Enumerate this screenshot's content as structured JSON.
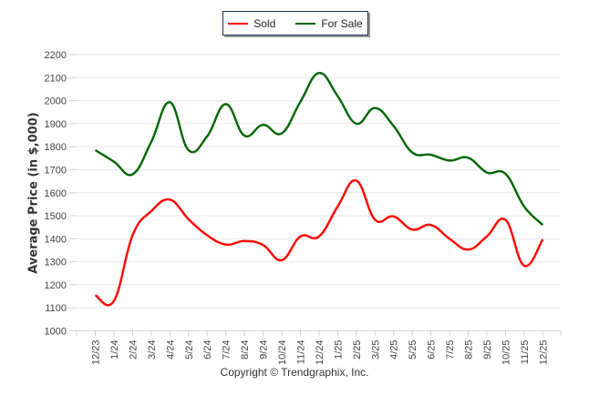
{
  "chart_data": {
    "type": "line",
    "title": "",
    "xlabel": "",
    "ylabel": "Average Price (in $,000)",
    "ylim": [
      1000,
      2200
    ],
    "yticks": [
      "1000",
      "1100",
      "1200",
      "1300",
      "1400",
      "1500",
      "1600",
      "1700",
      "1800",
      "1900",
      "2000",
      "2100",
      "2200"
    ],
    "grid": true,
    "legend_position": "top-center",
    "categories": [
      "12/23",
      "1/24",
      "2/24",
      "3/24",
      "4/24",
      "5/24",
      "6/24",
      "7/24",
      "8/24",
      "9/24",
      "10/24",
      "11/24",
      "12/24",
      "1/25",
      "2/25",
      "3/25",
      "4/25",
      "5/25",
      "6/25",
      "7/25",
      "8/25",
      "9/25",
      "10/25",
      "11/25",
      "12/25"
    ],
    "series": [
      {
        "name": "Sold",
        "color": "#ff0000",
        "values": [
          1155,
          1130,
          1415,
          1520,
          1570,
          1485,
          1415,
          1375,
          1390,
          1373,
          1307,
          1410,
          1410,
          1540,
          1653,
          1483,
          1497,
          1440,
          1460,
          1400,
          1353,
          1410,
          1482,
          1283,
          1397
        ]
      },
      {
        "name": "For Sale",
        "color": "#006400",
        "values": [
          1785,
          1735,
          1680,
          1820,
          1993,
          1785,
          1845,
          1985,
          1848,
          1895,
          1858,
          1995,
          2120,
          2020,
          1900,
          1968,
          1890,
          1775,
          1765,
          1740,
          1752,
          1688,
          1682,
          1540,
          1460
        ]
      }
    ]
  },
  "footer": {
    "copyright": "Copyright © Trendgraphix, Inc."
  }
}
